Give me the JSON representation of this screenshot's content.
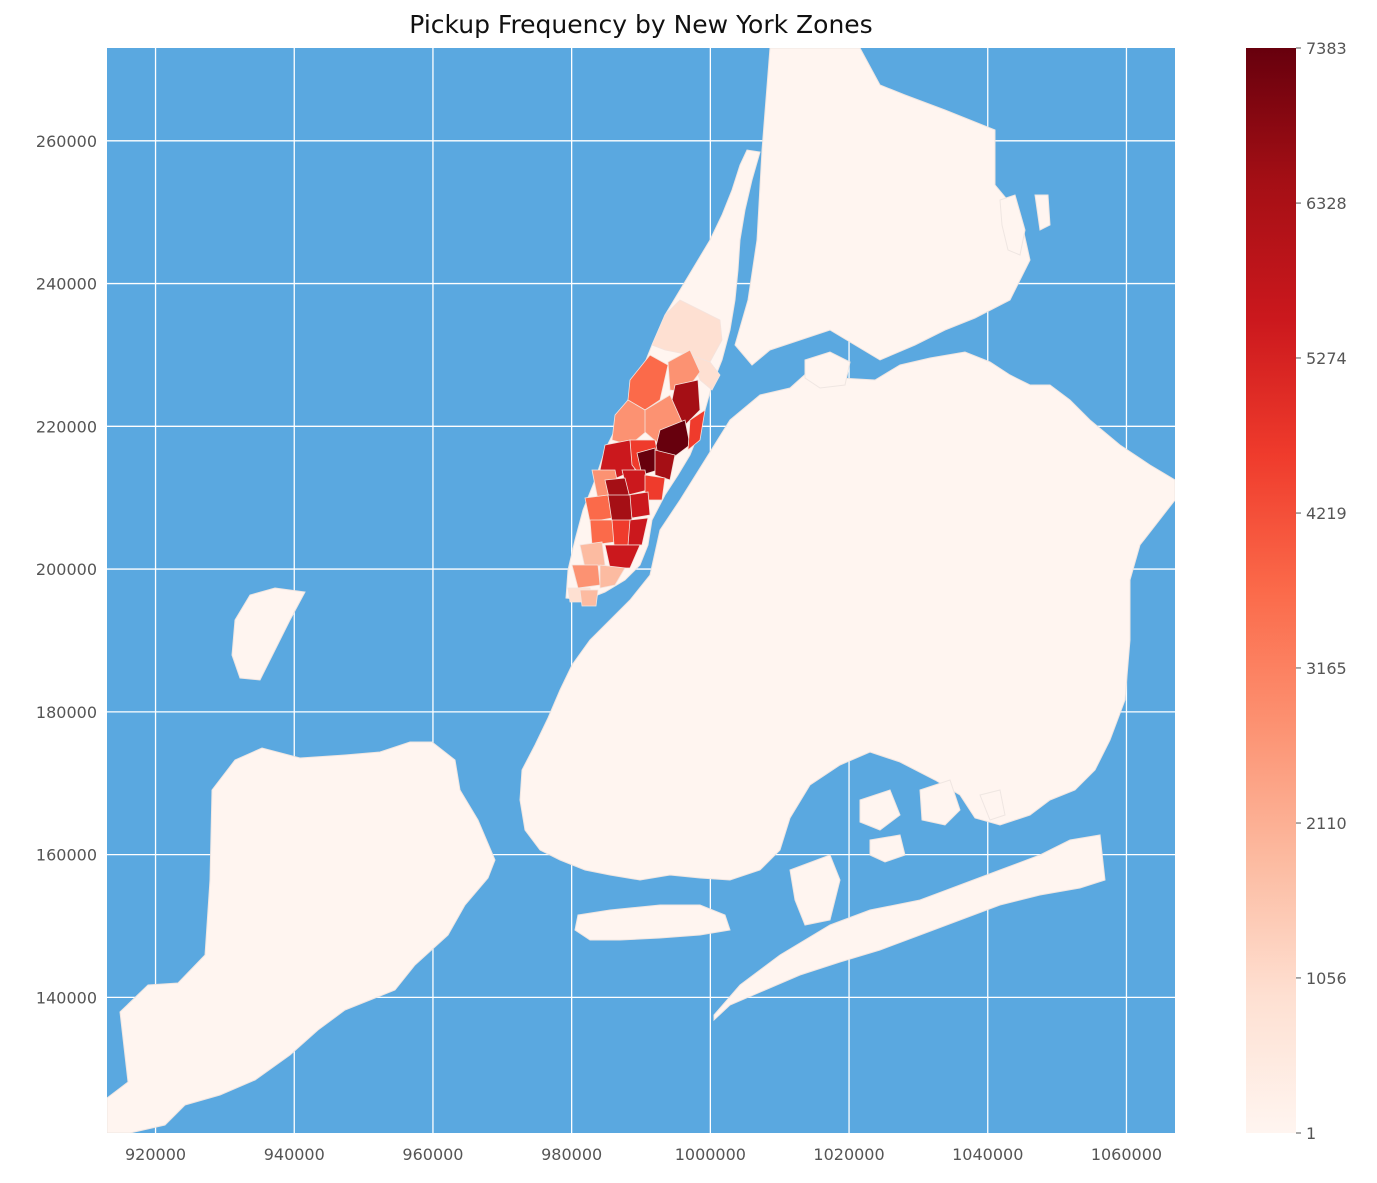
{
  "title": "Pickup Frequency by New York Zones",
  "colors": {
    "water": "#5aa8e0",
    "grid": "#ffffff",
    "land_low": "#fff5f0",
    "land_high": "#67000d",
    "zone_border": "#efe6e2"
  },
  "chart_data": {
    "type": "heatmap",
    "title": "Pickup Frequency by New York Zones",
    "xlabel": "",
    "ylabel": "",
    "xlim": [
      913000,
      1067000
    ],
    "ylim": [
      121000,
      273000
    ],
    "x_ticks": [
      920000,
      940000,
      960000,
      980000,
      1000000,
      1020000,
      1040000,
      1060000
    ],
    "y_ticks": [
      140000,
      160000,
      180000,
      200000,
      220000,
      240000,
      260000
    ],
    "x_tick_labels": [
      "920000",
      "940000",
      "960000",
      "980000",
      "1000000",
      "1020000",
      "1040000",
      "1060000"
    ],
    "y_tick_labels": [
      "140000",
      "160000",
      "180000",
      "200000",
      "220000",
      "240000",
      "260000"
    ],
    "grid": true,
    "colorscale": "Reds",
    "colorbar": {
      "min": 1,
      "max": 7383,
      "ticks": [
        1,
        1056,
        2110,
        3165,
        4219,
        5274,
        6328,
        7383
      ],
      "tick_labels": [
        "1",
        "1056",
        "2110",
        "3165",
        "4219",
        "5274",
        "6328",
        "7383"
      ],
      "placement": "right"
    }
  }
}
